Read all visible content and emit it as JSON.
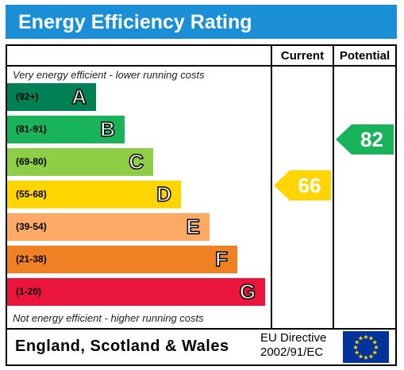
{
  "title": "Energy Efficiency Rating",
  "columns": {
    "current": "Current",
    "potential": "Potential"
  },
  "top_note": "Very energy efficient - lower running costs",
  "bottom_note": "Not energy efficient - higher running costs",
  "bands": [
    {
      "range": "(92+)",
      "letter": "A",
      "color": "#008054"
    },
    {
      "range": "(81-91)",
      "letter": "B",
      "color": "#19b459"
    },
    {
      "range": "(69-80)",
      "letter": "C",
      "color": "#8dce46"
    },
    {
      "range": "(55-68)",
      "letter": "D",
      "color": "#ffd500"
    },
    {
      "range": "(39-54)",
      "letter": "E",
      "color": "#fcaa65"
    },
    {
      "range": "(21-38)",
      "letter": "F",
      "color": "#ef8023"
    },
    {
      "range": "(1-20)",
      "letter": "G",
      "color": "#e9153b"
    }
  ],
  "current": {
    "value": "66",
    "band": "D",
    "color": "#ffd500"
  },
  "potential": {
    "value": "82",
    "band": "B",
    "color": "#19b459"
  },
  "footer": {
    "region": "England, Scotland & Wales",
    "directive_line1": "EU Directive",
    "directive_line2": "2002/91/EC"
  },
  "colors": {
    "header": "#1a8fd6",
    "eu_flag": "#003399",
    "eu_stars": "#ffdd00"
  }
}
